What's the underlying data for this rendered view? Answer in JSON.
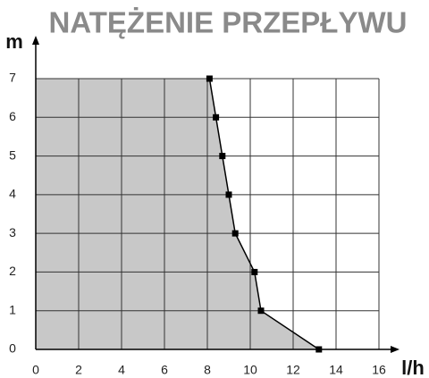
{
  "chart_data": {
    "type": "line",
    "title": "NATĘŻENIE PRZEPŁYWU",
    "x_label": "l/h",
    "y_label": "m",
    "x": [
      8.1,
      8.4,
      8.7,
      9.0,
      9.3,
      10.2,
      10.5,
      13.2
    ],
    "values": [
      7,
      6,
      5,
      4,
      3,
      2,
      1,
      0
    ],
    "color": "#000000",
    "fill_color": "#c8c8c8",
    "xlim": [
      0,
      16
    ],
    "xticks": [
      0,
      2,
      4,
      6,
      8,
      10,
      12,
      14,
      16
    ],
    "ylim": [
      0,
      7
    ],
    "yticks": [
      0,
      1,
      2,
      3,
      4,
      5,
      6,
      7
    ],
    "grid": true
  }
}
